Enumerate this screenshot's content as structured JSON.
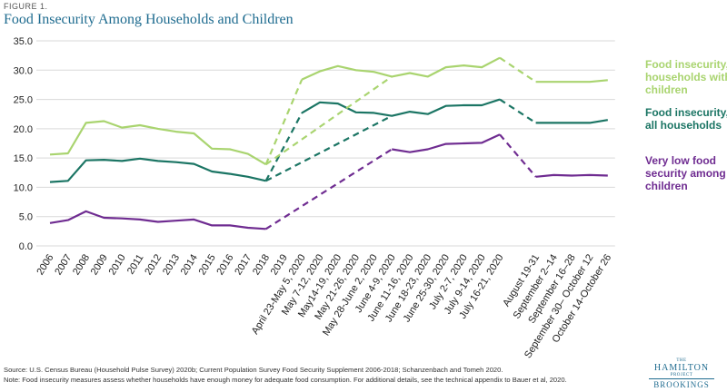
{
  "figure_label": "FIGURE 1.",
  "chart_data": {
    "type": "line",
    "title": "Food Insecurity Among Households and Children",
    "xlabel": "",
    "ylabel": "",
    "ylim": [
      0,
      35
    ],
    "yticks": [
      "0.0",
      "5.0",
      "10.0",
      "15.0",
      "20.0",
      "25.0",
      "30.0",
      "35.0"
    ],
    "grid": "horizontal",
    "legend_placement": "right",
    "categories": [
      "2006",
      "2007",
      "2008",
      "2009",
      "2010",
      "2011",
      "2012",
      "2013",
      "2014",
      "2015",
      "2016",
      "2017",
      "2018",
      "2019",
      "April 23-May 5, 2020",
      "May 7-12, 2020",
      "May14-19, 2020",
      "May 21-26, 2020",
      "May 28-June 2, 2020",
      "June 4-9, 2020",
      "June 11-16, 2020",
      "June 18-23, 2020",
      "June 25-30, 2020",
      "July 2-7, 2020",
      "July 9-14, 2020",
      "July 16-21, 2020",
      "",
      "August 19-31",
      "September 2–14",
      "September 16–28",
      "September 30– October 12",
      "October 14-October 26"
    ],
    "series": [
      {
        "name": "Food insecurity, households with children",
        "legend_lines": [
          "Food insecurity,",
          "households with",
          "children"
        ],
        "color": "#a9d46f",
        "values": [
          15.6,
          15.8,
          21.0,
          21.3,
          20.2,
          20.6,
          20.0,
          19.5,
          19.2,
          16.6,
          16.5,
          15.7,
          13.9,
          null,
          28.4,
          29.8,
          30.7,
          30.0,
          29.7,
          28.9,
          29.5,
          28.9,
          30.5,
          30.8,
          30.5,
          32.1,
          null,
          28.0,
          28.0,
          28.0,
          28.0,
          28.3
        ]
      },
      {
        "name": "Food insecurity, all households",
        "legend_lines": [
          "Food insecurity,",
          "all households"
        ],
        "color": "#1b7564",
        "values": [
          10.9,
          11.1,
          14.6,
          14.7,
          14.5,
          14.9,
          14.5,
          14.3,
          14.0,
          12.7,
          12.3,
          11.8,
          11.1,
          null,
          22.7,
          24.5,
          24.3,
          22.8,
          22.7,
          22.2,
          22.9,
          22.5,
          23.9,
          24.0,
          24.0,
          25.0,
          null,
          21.0,
          21.0,
          21.0,
          21.0,
          21.5
        ]
      },
      {
        "name": "Very low food security among children",
        "legend_lines": [
          "Very low food",
          "security among",
          "children"
        ],
        "color": "#6f2c91",
        "values": [
          3.9,
          4.4,
          5.9,
          4.8,
          4.7,
          4.5,
          4.1,
          4.3,
          4.5,
          3.5,
          3.5,
          3.1,
          2.9,
          null,
          null,
          null,
          null,
          null,
          null,
          16.5,
          16.0,
          16.5,
          17.4,
          17.5,
          17.6,
          19.0,
          null,
          11.8,
          12.1,
          12.0,
          12.1,
          12.0
        ]
      }
    ],
    "dashed_gaps": [
      [
        12,
        14
      ],
      [
        12,
        19
      ],
      [
        25,
        27
      ]
    ]
  },
  "footer": {
    "source": "Source: U.S. Census Bureau (Household Pulse Survey) 2020b; Current Population Survey Food Security Supplement 2006-2018; Schanzenbach and Tomeh 2020.",
    "note": "Note: Food insecurity measures assess whether households have enough money for adequate food consumption. For additional details, see the technical appendix to Bauer et al, 2020."
  },
  "logo": {
    "the": "THE",
    "name": "HAMILTON",
    "project": "PROJECT",
    "org": "BROOKINGS"
  }
}
